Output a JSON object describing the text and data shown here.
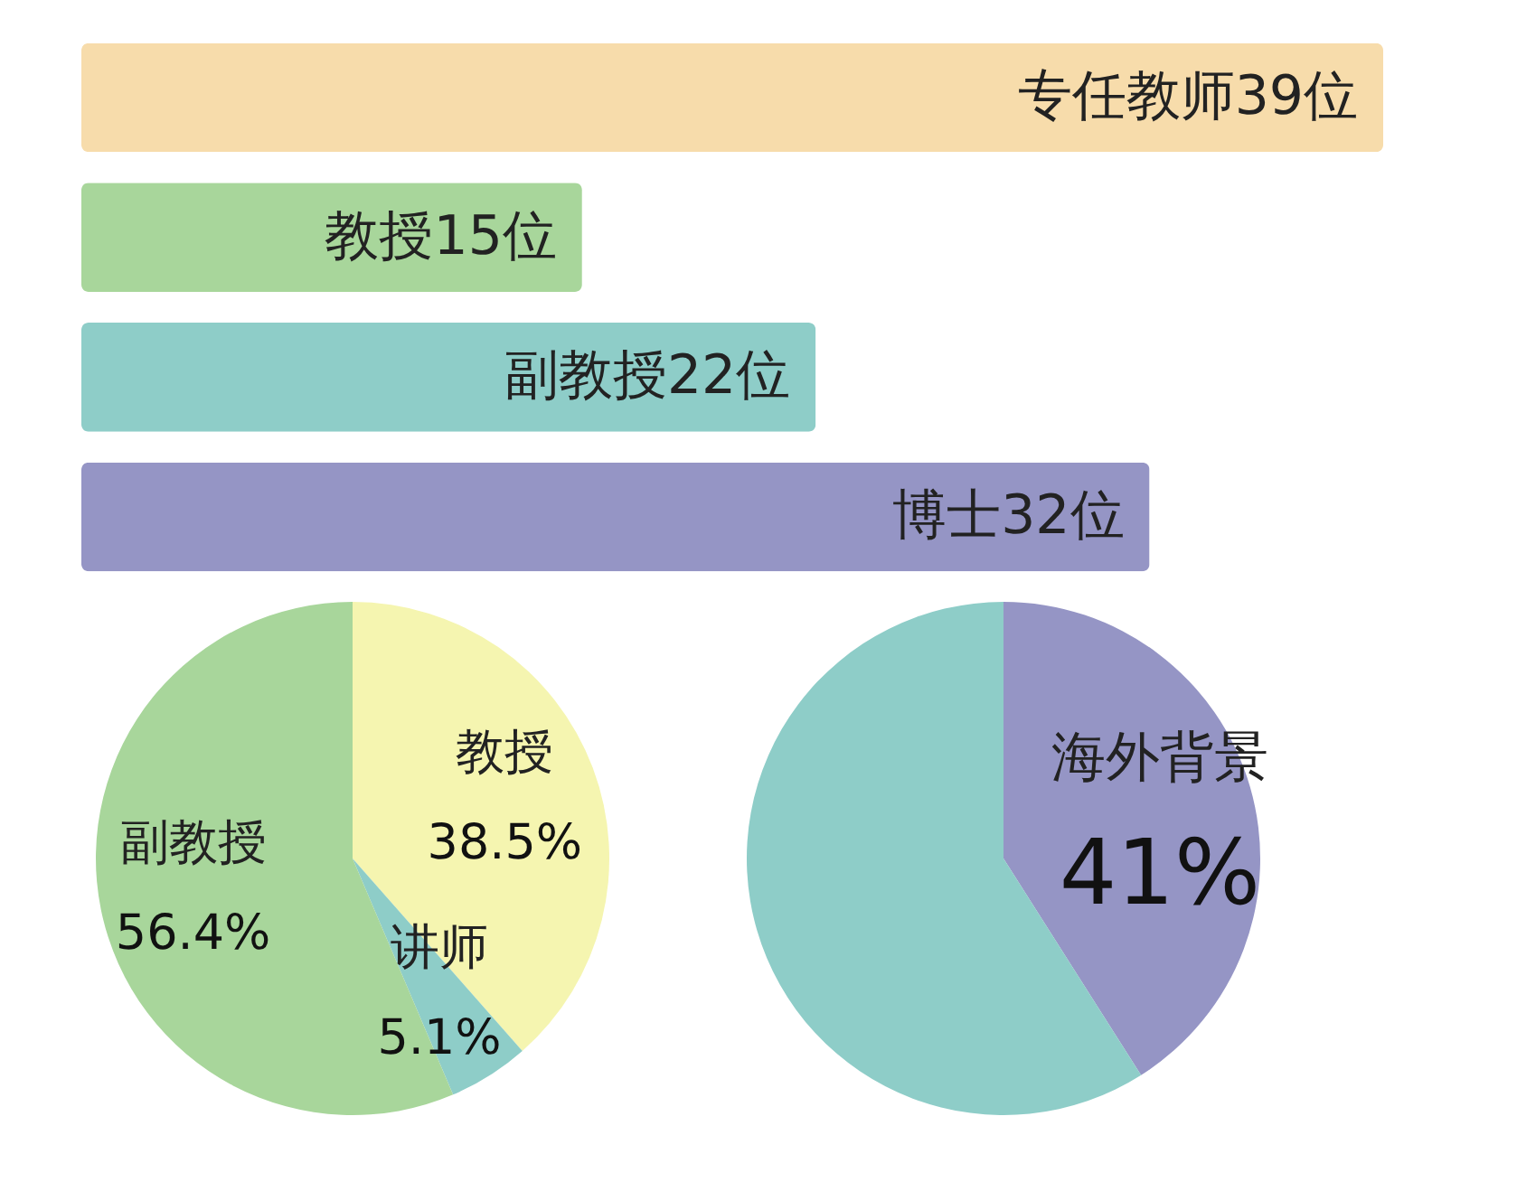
{
  "chart_data": [
    {
      "type": "bar",
      "orientation": "horizontal",
      "categories": [
        null,
        null,
        null,
        null
      ],
      "values": [
        39,
        15,
        22,
        32
      ],
      "colors": [
        "#f7dcab",
        "#a8d69b",
        "#8ecdc8",
        "#9595c5"
      ],
      "value_labels": [
        "专任教师39位",
        "教授15位",
        "副教授22位",
        "博士32位"
      ]
    },
    {
      "type": "pie",
      "categories": [
        "教授",
        "讲师",
        "副教授"
      ],
      "values": [
        38.5,
        5.1,
        56.4
      ],
      "colors": [
        "#f5f5b0",
        "#8ecdc8",
        "#a8d69b"
      ],
      "value_labels": [
        "38.5%",
        "5.1%",
        "56.4%"
      ]
    },
    {
      "type": "pie",
      "categories": [
        "海外背景",
        null
      ],
      "values": [
        41,
        59
      ],
      "colors": [
        "#9595c5",
        "#8ecdc8"
      ],
      "value_labels": [
        "41%",
        null
      ]
    }
  ]
}
